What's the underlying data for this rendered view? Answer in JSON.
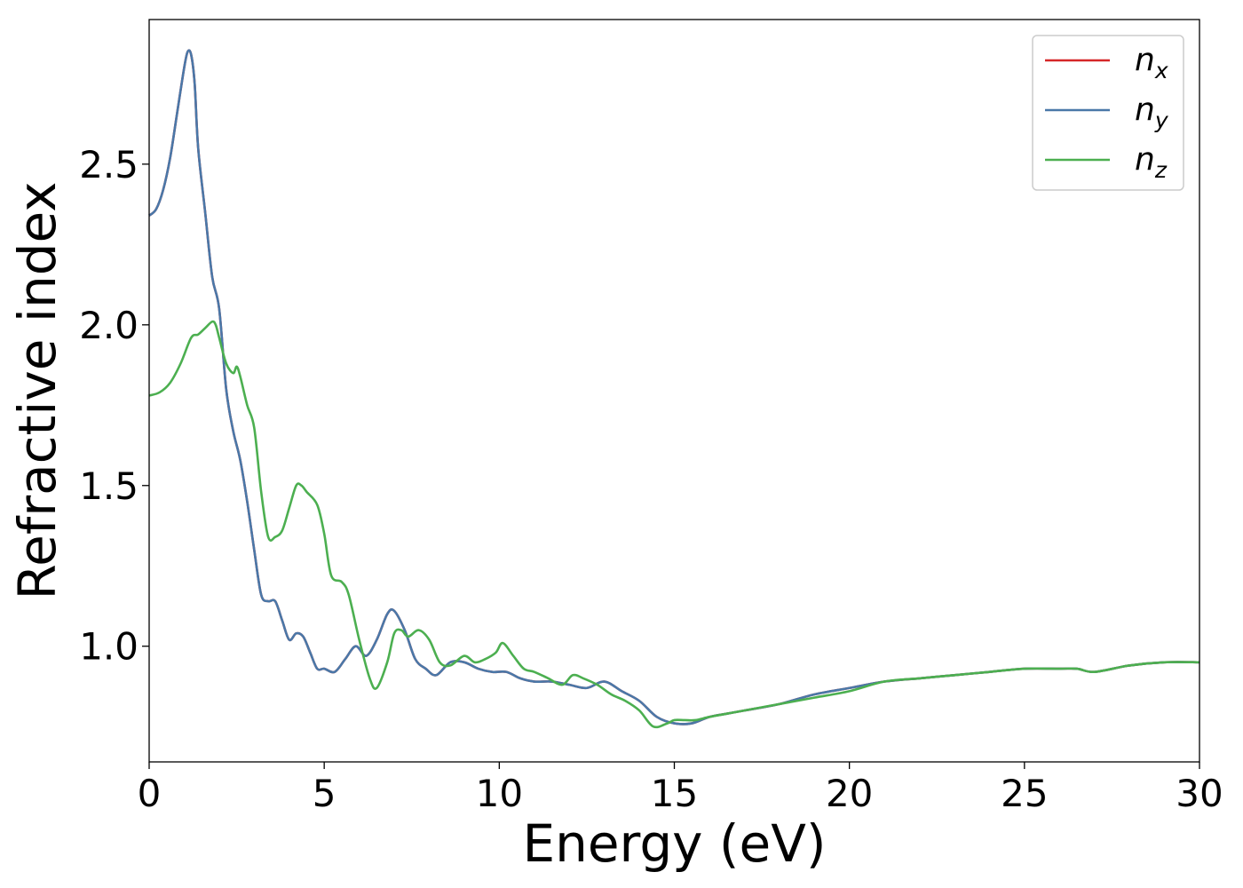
{
  "chart_data": {
    "type": "line",
    "title": "",
    "xlabel": "Energy (eV)",
    "ylabel": "Refractive index",
    "xlim": [
      0,
      30
    ],
    "ylim": [
      0.64,
      2.95
    ],
    "xticks": [
      0,
      5,
      10,
      15,
      20,
      25,
      30
    ],
    "yticks": [
      1.0,
      1.5,
      2.0,
      2.5
    ],
    "xtick_labels": [
      "0",
      "5",
      "10",
      "15",
      "20",
      "25",
      "30"
    ],
    "ytick_labels": [
      "1.0",
      "1.5",
      "2.0",
      "2.5"
    ],
    "grid": false,
    "legend_position": "top-right",
    "series": [
      {
        "name": "n_x",
        "label_base": "n",
        "label_sub": "x",
        "color": "#d62728",
        "x": [
          0,
          0.2,
          0.4,
          0.6,
          0.8,
          1.0,
          1.1,
          1.2,
          1.3,
          1.4,
          1.6,
          1.8,
          2.0,
          2.2,
          2.4,
          2.6,
          2.8,
          3.0,
          3.2,
          3.4,
          3.6,
          3.8,
          4.0,
          4.2,
          4.4,
          4.6,
          4.8,
          5.0,
          5.3,
          5.6,
          5.9,
          6.2,
          6.5,
          6.8,
          7.0,
          7.3,
          7.6,
          7.9,
          8.2,
          8.6,
          9.0,
          9.4,
          9.8,
          10.2,
          10.6,
          11.0,
          11.5,
          12.0,
          12.5,
          13.0,
          13.5,
          14.0,
          14.5,
          15.0,
          15.5,
          16.0,
          16.5,
          17.0,
          18.0,
          19.0,
          20.0,
          21.0,
          22.0,
          23.0,
          24.0,
          25.0,
          26.0,
          26.5,
          27.0,
          28.0,
          29.0,
          30.0
        ],
        "values": [
          2.34,
          2.36,
          2.42,
          2.52,
          2.66,
          2.8,
          2.85,
          2.84,
          2.75,
          2.55,
          2.35,
          2.15,
          2.05,
          1.8,
          1.67,
          1.58,
          1.45,
          1.3,
          1.16,
          1.14,
          1.14,
          1.08,
          1.02,
          1.04,
          1.03,
          0.98,
          0.93,
          0.93,
          0.92,
          0.96,
          1.0,
          0.97,
          1.02,
          1.1,
          1.11,
          1.05,
          0.96,
          0.93,
          0.91,
          0.95,
          0.95,
          0.93,
          0.92,
          0.92,
          0.9,
          0.89,
          0.89,
          0.88,
          0.87,
          0.89,
          0.86,
          0.83,
          0.78,
          0.76,
          0.76,
          0.78,
          0.79,
          0.8,
          0.82,
          0.85,
          0.87,
          0.89,
          0.9,
          0.91,
          0.92,
          0.93,
          0.93,
          0.93,
          0.92,
          0.94,
          0.95,
          0.95
        ]
      },
      {
        "name": "n_y",
        "label_base": "n",
        "label_sub": "y",
        "color": "#4a78a8",
        "x": [
          0,
          0.2,
          0.4,
          0.6,
          0.8,
          1.0,
          1.1,
          1.2,
          1.3,
          1.4,
          1.6,
          1.8,
          2.0,
          2.2,
          2.4,
          2.6,
          2.8,
          3.0,
          3.2,
          3.4,
          3.6,
          3.8,
          4.0,
          4.2,
          4.4,
          4.6,
          4.8,
          5.0,
          5.3,
          5.6,
          5.9,
          6.2,
          6.5,
          6.8,
          7.0,
          7.3,
          7.6,
          7.9,
          8.2,
          8.6,
          9.0,
          9.4,
          9.8,
          10.2,
          10.6,
          11.0,
          11.5,
          12.0,
          12.5,
          13.0,
          13.5,
          14.0,
          14.5,
          15.0,
          15.5,
          16.0,
          16.5,
          17.0,
          18.0,
          19.0,
          20.0,
          21.0,
          22.0,
          23.0,
          24.0,
          25.0,
          26.0,
          26.5,
          27.0,
          28.0,
          29.0,
          30.0
        ],
        "values": [
          2.34,
          2.36,
          2.42,
          2.52,
          2.66,
          2.8,
          2.85,
          2.84,
          2.75,
          2.55,
          2.35,
          2.15,
          2.05,
          1.8,
          1.67,
          1.58,
          1.45,
          1.3,
          1.16,
          1.14,
          1.14,
          1.08,
          1.02,
          1.04,
          1.03,
          0.98,
          0.93,
          0.93,
          0.92,
          0.96,
          1.0,
          0.97,
          1.02,
          1.1,
          1.11,
          1.05,
          0.96,
          0.93,
          0.91,
          0.95,
          0.95,
          0.93,
          0.92,
          0.92,
          0.9,
          0.89,
          0.89,
          0.88,
          0.87,
          0.89,
          0.86,
          0.83,
          0.78,
          0.76,
          0.76,
          0.78,
          0.79,
          0.8,
          0.82,
          0.85,
          0.87,
          0.89,
          0.9,
          0.91,
          0.92,
          0.93,
          0.93,
          0.93,
          0.92,
          0.94,
          0.95,
          0.95
        ]
      },
      {
        "name": "n_z",
        "label_base": "n",
        "label_sub": "z",
        "color": "#4caf50",
        "x": [
          0,
          0.3,
          0.6,
          0.9,
          1.2,
          1.4,
          1.6,
          1.8,
          1.9,
          2.0,
          2.2,
          2.4,
          2.5,
          2.6,
          2.8,
          3.0,
          3.2,
          3.4,
          3.6,
          3.8,
          4.0,
          4.2,
          4.35,
          4.5,
          4.8,
          5.0,
          5.2,
          5.5,
          5.7,
          6.0,
          6.3,
          6.5,
          6.8,
          7.0,
          7.2,
          7.4,
          7.7,
          8.0,
          8.3,
          8.6,
          9.0,
          9.3,
          9.6,
          9.9,
          10.1,
          10.4,
          10.7,
          11.0,
          11.4,
          11.8,
          12.1,
          12.4,
          12.8,
          13.2,
          13.6,
          14.0,
          14.4,
          14.8,
          15.0,
          15.3,
          15.6,
          16.0,
          16.5,
          17.0,
          18.0,
          19.0,
          20.0,
          21.0,
          22.0,
          23.0,
          24.0,
          25.0,
          26.0,
          26.5,
          27.0,
          28.0,
          29.0,
          30.0
        ],
        "values": [
          1.78,
          1.79,
          1.82,
          1.88,
          1.96,
          1.97,
          1.99,
          2.01,
          2.0,
          1.96,
          1.88,
          1.85,
          1.87,
          1.84,
          1.75,
          1.68,
          1.48,
          1.34,
          1.34,
          1.36,
          1.43,
          1.5,
          1.5,
          1.48,
          1.44,
          1.35,
          1.22,
          1.2,
          1.16,
          1.02,
          0.9,
          0.87,
          0.95,
          1.04,
          1.05,
          1.03,
          1.05,
          1.02,
          0.95,
          0.94,
          0.97,
          0.95,
          0.96,
          0.98,
          1.01,
          0.97,
          0.93,
          0.92,
          0.9,
          0.88,
          0.91,
          0.9,
          0.88,
          0.85,
          0.83,
          0.8,
          0.75,
          0.76,
          0.77,
          0.77,
          0.77,
          0.78,
          0.79,
          0.8,
          0.82,
          0.84,
          0.86,
          0.89,
          0.9,
          0.91,
          0.92,
          0.93,
          0.93,
          0.93,
          0.92,
          0.94,
          0.95,
          0.95
        ]
      }
    ]
  }
}
